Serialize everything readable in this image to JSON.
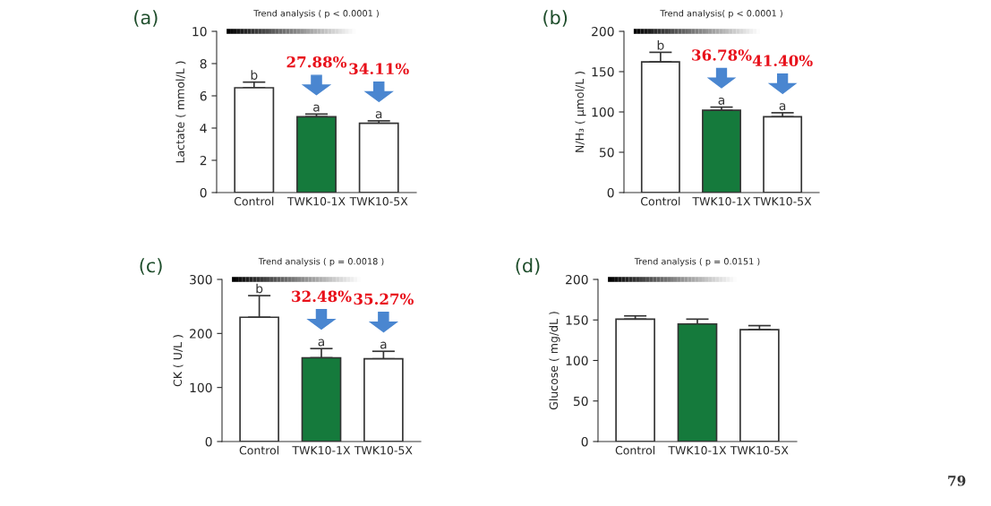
{
  "chart_data": [
    {
      "type": "bar",
      "title": "Trend analysis ( p < 0.0001 )",
      "ylabel": "Lactate ( mmol/L )",
      "categories": [
        "Control",
        "TWK10-1X",
        "TWK10-5X"
      ],
      "values": [
        6.5,
        4.7,
        4.3
      ],
      "errors": [
        [
          6.5,
          6.85
        ],
        [
          4.7,
          4.87
        ],
        [
          4.3,
          4.45
        ]
      ],
      "colors": [
        "#ffffff",
        "#157a3c",
        "#ffffff"
      ],
      "ylim": [
        0,
        10
      ],
      "yticks": [
        0,
        2,
        4,
        6,
        8,
        10
      ],
      "grid": false,
      "legend": false,
      "annotations": [
        "(a)",
        {
          "text": "b",
          "x": "Control",
          "y": 6.85
        },
        {
          "text": "a",
          "x": "TWK10-1X",
          "y": 4.87
        },
        {
          "text": "a",
          "x": "TWK10-5X",
          "y": 4.45
        },
        "27.88%",
        "34.11%"
      ]
    },
    {
      "type": "bar",
      "title": "Trend analysis( p < 0.0001 )",
      "ylabel": "N/H₃ ( μmol/L )",
      "categories": [
        "Control",
        "TWK10-1X",
        "TWK10-5X"
      ],
      "values": [
        162,
        102,
        94
      ],
      "errors": [
        [
          162,
          174
        ],
        [
          102,
          106
        ],
        [
          94,
          99
        ]
      ],
      "colors": [
        "#ffffff",
        "#157a3c",
        "#ffffff"
      ],
      "ylim": [
        0,
        200
      ],
      "yticks": [
        0,
        50,
        100,
        150,
        200
      ],
      "grid": false,
      "legend": false,
      "annotations": [
        "(b)",
        {
          "text": "b",
          "x": "Control",
          "y": 174
        },
        {
          "text": "a",
          "x": "TWK10-1X",
          "y": 106
        },
        {
          "text": "a",
          "x": "TWK10-5X",
          "y": 99
        },
        "36.78%",
        "41.40%"
      ]
    },
    {
      "type": "bar",
      "title": "Trend analysis ( p = 0.0018 )",
      "ylabel": "CK ( U/L )",
      "categories": [
        "Control",
        "TWK10-1X",
        "TWK10-5X"
      ],
      "values": [
        230,
        155,
        153
      ],
      "errors": [
        [
          230,
          270
        ],
        [
          155,
          172
        ],
        [
          153,
          167
        ]
      ],
      "colors": [
        "#ffffff",
        "#157a3c",
        "#ffffff"
      ],
      "ylim": [
        0,
        300
      ],
      "yticks": [
        0,
        100,
        200,
        300
      ],
      "grid": false,
      "legend": false,
      "annotations": [
        "(c)",
        {
          "text": "b",
          "x": "Control",
          "y": 270
        },
        {
          "text": "a",
          "x": "TWK10-1X",
          "y": 172
        },
        {
          "text": "a",
          "x": "TWK10-5X",
          "y": 167
        },
        "32.48%",
        "35.27%"
      ]
    },
    {
      "type": "bar",
      "title": "Trend analysis ( p = 0.0151 )",
      "ylabel": "Glucose ( mg/dL )",
      "categories": [
        "Control",
        "TWK10-1X",
        "TWK10-5X"
      ],
      "values": [
        151,
        145,
        138
      ],
      "errors": [
        [
          151,
          155
        ],
        [
          145,
          151
        ],
        [
          138,
          143
        ]
      ],
      "colors": [
        "#ffffff",
        "#157a3c",
        "#ffffff"
      ],
      "ylim": [
        0,
        200
      ],
      "yticks": [
        0,
        50,
        100,
        150,
        200
      ],
      "grid": false,
      "legend": false,
      "annotations": [
        "(d)",
        "79"
      ]
    }
  ]
}
